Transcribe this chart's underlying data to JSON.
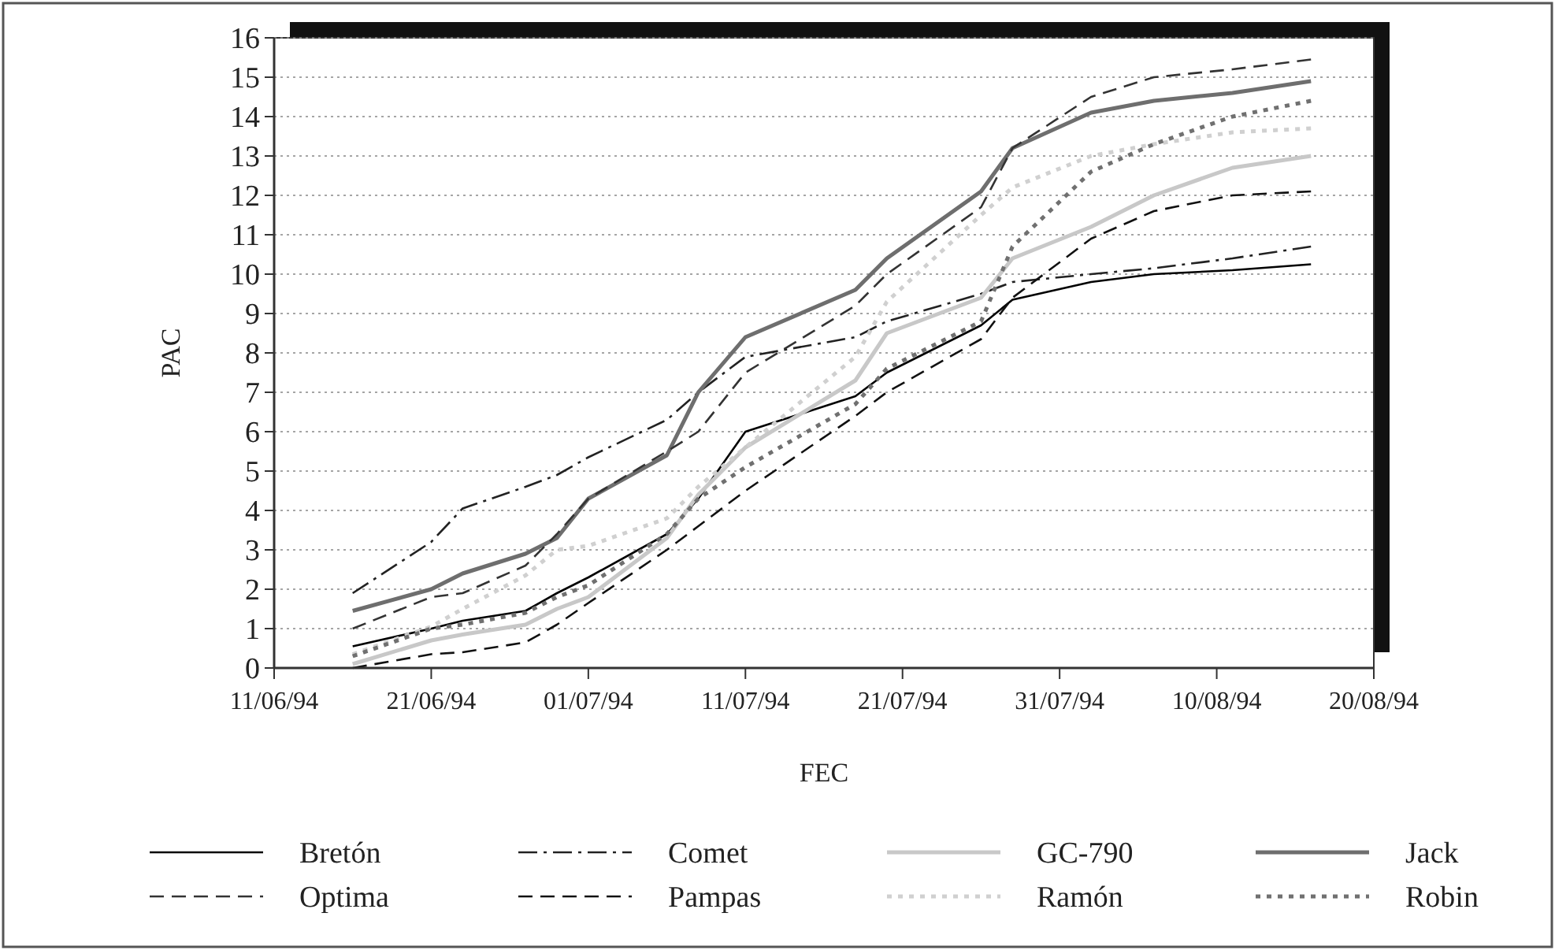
{
  "chart_data": {
    "type": "line",
    "xlabel": "FEC",
    "ylabel": "PAC",
    "x": [
      "1994-06-16",
      "1994-06-21",
      "1994-06-23",
      "1994-06-27",
      "1994-06-29",
      "1994-07-01",
      "1994-07-06",
      "1994-07-08",
      "1994-07-11",
      "1994-07-18",
      "1994-07-20",
      "1994-07-26",
      "1994-07-28",
      "1994-08-02",
      "1994-08-06",
      "1994-08-11",
      "1994-08-16"
    ],
    "series": [
      {
        "name": "Bretón",
        "color": "#000000",
        "line_style": "solid",
        "values": [
          0.55,
          1.0,
          1.2,
          1.45,
          1.9,
          2.3,
          3.4,
          4.3,
          6.0,
          6.9,
          7.5,
          8.7,
          9.35,
          9.8,
          10.0,
          10.1,
          10.25
        ]
      },
      {
        "name": "Comet",
        "color": "#222222",
        "line_style": "dashdot",
        "values": [
          1.9,
          3.2,
          4.05,
          4.6,
          4.9,
          5.35,
          6.3,
          7.0,
          7.9,
          8.4,
          8.8,
          9.5,
          9.8,
          10.0,
          10.15,
          10.4,
          10.7
        ]
      },
      {
        "name": "GC-790",
        "color": "#c8c8c8",
        "line_style": "solid",
        "values": [
          0.1,
          0.7,
          0.85,
          1.1,
          1.5,
          1.8,
          3.3,
          4.4,
          5.6,
          7.3,
          8.5,
          9.4,
          10.4,
          11.2,
          12.0,
          12.7,
          13.0
        ]
      },
      {
        "name": "Jack",
        "color": "#6e6e6e",
        "line_style": "solid",
        "values": [
          1.45,
          2.0,
          2.4,
          2.9,
          3.3,
          4.3,
          5.4,
          7.0,
          8.4,
          9.6,
          10.4,
          12.1,
          13.2,
          14.1,
          14.4,
          14.6,
          14.9
        ]
      },
      {
        "name": "Optima",
        "color": "#333333",
        "line_style": "dashed",
        "values": [
          1.0,
          1.8,
          1.9,
          2.6,
          3.4,
          4.3,
          5.5,
          6.0,
          7.5,
          9.2,
          10.0,
          11.7,
          13.2,
          14.5,
          15.0,
          15.2,
          15.45
        ]
      },
      {
        "name": "Pampas",
        "color": "#111111",
        "line_style": "dashed",
        "values": [
          0.0,
          0.35,
          0.4,
          0.65,
          1.1,
          1.65,
          3.0,
          3.6,
          4.5,
          6.4,
          7.0,
          8.35,
          9.4,
          10.9,
          11.6,
          12.0,
          12.1
        ]
      },
      {
        "name": "Ramón",
        "color": "#d0d0d0",
        "line_style": "dotted",
        "values": [
          0.35,
          1.05,
          1.5,
          2.35,
          3.0,
          3.1,
          3.8,
          4.6,
          5.6,
          7.9,
          9.3,
          11.5,
          12.2,
          13.0,
          13.3,
          13.6,
          13.7
        ]
      },
      {
        "name": "Robin",
        "color": "#707070",
        "line_style": "dotted",
        "values": [
          0.3,
          1.0,
          1.1,
          1.4,
          1.8,
          2.1,
          3.4,
          4.3,
          5.1,
          6.7,
          7.6,
          8.8,
          10.7,
          12.6,
          13.3,
          14.0,
          14.4
        ]
      }
    ],
    "xlim": [
      "1994-06-11",
      "1994-08-20"
    ],
    "xticks": [
      {
        "value": "1994-06-11",
        "label": "11/06/94"
      },
      {
        "value": "1994-06-21",
        "label": "21/06/94"
      },
      {
        "value": "1994-07-01",
        "label": "01/07/94"
      },
      {
        "value": "1994-07-11",
        "label": "11/07/94"
      },
      {
        "value": "1994-07-21",
        "label": "21/07/94"
      },
      {
        "value": "1994-07-31",
        "label": "31/07/94"
      },
      {
        "value": "1994-08-10",
        "label": "10/08/94"
      },
      {
        "value": "1994-08-20",
        "label": "20/08/94"
      }
    ],
    "ylim": [
      0,
      16
    ],
    "yticks": [
      0,
      1,
      2,
      3,
      4,
      5,
      6,
      7,
      8,
      9,
      10,
      11,
      12,
      13,
      14,
      15,
      16
    ],
    "grid": "y",
    "legend": "bottom",
    "marker": "none"
  }
}
